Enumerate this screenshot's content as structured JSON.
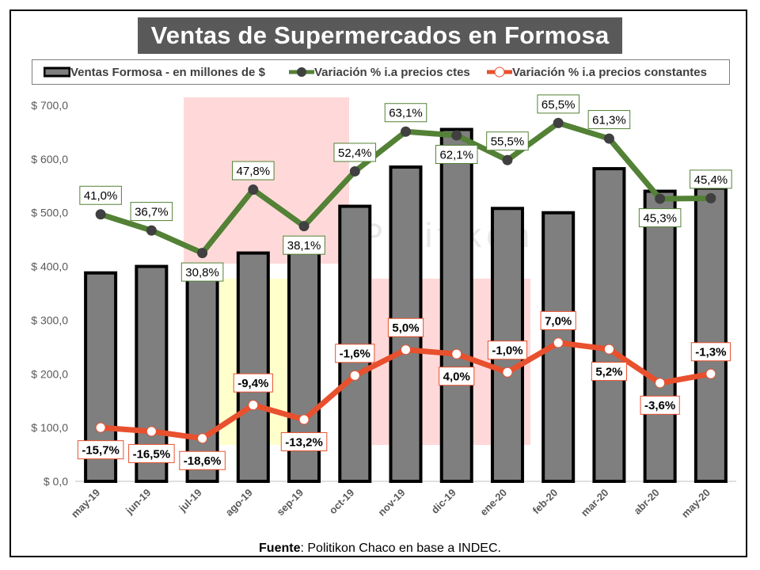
{
  "header": {
    "title": "Ventas de Supermercados en Formosa"
  },
  "source": {
    "label": "Fuente",
    "text": ": Politikon Chaco en base a INDEC."
  },
  "watermark": "Politikon",
  "colors": {
    "bar_fill": "#7f7f7f",
    "bar_stroke": "#000000",
    "green_line": "#538135",
    "green_marker": "#404040",
    "green_label_border": "#538135",
    "red_line": "#e8502e",
    "red_label_border": "#e8502e",
    "highlight_red": "#ffd9d9",
    "highlight_yellow": "#ffffcc"
  },
  "chart_data": {
    "type": "bar",
    "title": "Ventas de Supermercados en Formosa",
    "categories": [
      "may-19",
      "jun-19",
      "jul-19",
      "ago-19",
      "sep-19",
      "oct-19",
      "nov-19",
      "dic-19",
      "ene-20",
      "feb-20",
      "mar-20",
      "abr-20",
      "may-20"
    ],
    "y_ticks": [
      "$ 0,0",
      "$ 100,0",
      "$ 200,0",
      "$ 300,0",
      "$ 400,0",
      "$ 500,0",
      "$ 600,0",
      "$ 700,0"
    ],
    "ylim": [
      0,
      700
    ],
    "legend_position": "top",
    "series": [
      {
        "name": "Ventas Formosa - en millones de $",
        "type": "bar",
        "values": [
          388,
          400,
          391,
          425,
          428,
          512,
          585,
          655,
          508,
          500,
          582,
          540,
          546
        ]
      },
      {
        "name": "Variación % i.a precios ctes",
        "type": "line",
        "plotted_y": [
          497,
          467,
          425,
          543,
          475,
          577,
          651,
          644,
          598,
          667,
          638,
          526,
          527
        ],
        "labels": [
          "41,0%",
          "36,7%",
          "30,8%",
          "47,8%",
          "38,1%",
          "52,4%",
          "63,1%",
          "62,1%",
          "55,5%",
          "65,5%",
          "61,3%",
          "45,3%",
          "45,4%"
        ]
      },
      {
        "name": "Variación % i.a precios constantes",
        "type": "line",
        "plotted_y": [
          100,
          93,
          80,
          142,
          115,
          197,
          245,
          237,
          203,
          258,
          246,
          183,
          200
        ],
        "labels": [
          "-15,7%",
          "-16,5%",
          "-18,6%",
          "-9,4%",
          "-13,2%",
          "-1,6%",
          "5,0%",
          "4,0%",
          "-1,0%",
          "7,0%",
          "5,2%",
          "-3,6%",
          "-1,3%"
        ]
      }
    ]
  }
}
